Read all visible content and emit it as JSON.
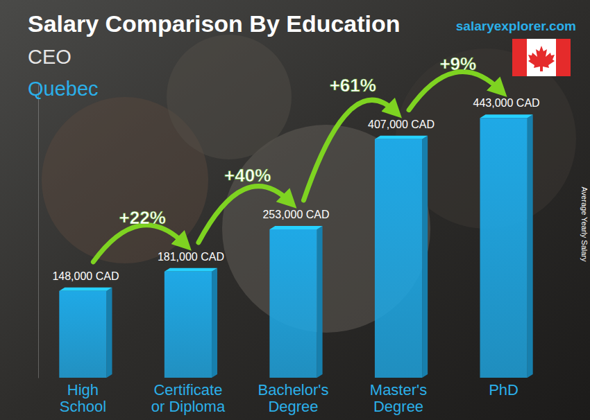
{
  "chart_data": {
    "type": "bar",
    "title": "Salary Comparison By Education",
    "subtitle": "CEO",
    "region": "Quebec",
    "watermark": "salaryexplorer.com",
    "y_label": "Average Yearly Salary",
    "categories": [
      "High School",
      "Certificate or Diploma",
      "Bachelor's Degree",
      "Master's Degree",
      "PhD"
    ],
    "values": [
      148000,
      181000,
      253000,
      407000,
      443000
    ],
    "value_labels": [
      "148,000 CAD",
      "181,000 CAD",
      "253,000 CAD",
      "407,000 CAD",
      "443,000 CAD"
    ],
    "annotations": [
      "+22%",
      "+40%",
      "+61%",
      "+9%"
    ],
    "color": "#1fa9e6",
    "ylim": [
      0,
      500000
    ],
    "grid": false,
    "data_labels": true,
    "tick_labels": false
  }
}
